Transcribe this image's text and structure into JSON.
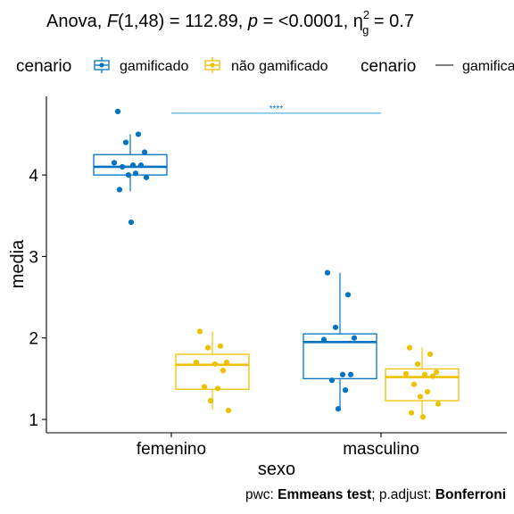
{
  "chart_data": {
    "type": "boxplot",
    "title": {
      "prefix": "Anova, ",
      "stat_symbol": "F",
      "df": "(1,48) = 112.89, ",
      "p_symbol": "p",
      "p_value": " = <0.0001, ",
      "eta_symbol": "η",
      "eta_super": "2",
      "eta_sub": "g",
      "eta_value": " = 0.7"
    },
    "xlabel": "sexo",
    "ylabel": "media",
    "ylim": [
      0.85,
      5.0
    ],
    "yticks": [
      1,
      2,
      3,
      4
    ],
    "categories": [
      "femenino",
      "masculino"
    ],
    "colors": {
      "gamificado": "#0073C2",
      "nao_gamificado": "#EFC000",
      "axis": "#000000",
      "bracket": "#56B4E9"
    },
    "legend": {
      "title1": "cenario",
      "item1": "gamificado",
      "item2": "não gamificado",
      "title2": "cenario",
      "item3": "gamificado"
    },
    "series": [
      {
        "name": "gamificado",
        "boxes": [
          {
            "category": "femenino",
            "whisker_low": 3.8,
            "q1": 4.0,
            "median": 4.1,
            "q3": 4.25,
            "whisker_high": 4.5
          },
          {
            "category": "masculino",
            "whisker_low": 1.12,
            "q1": 1.5,
            "median": 1.95,
            "q3": 2.05,
            "whisker_high": 2.8
          }
        ],
        "points": [
          {
            "category": "femenino",
            "values": [
              4.78,
              4.5,
              4.4,
              4.28,
              4.15,
              4.12,
              4.12,
              4.1,
              4.02,
              4.0,
              3.97,
              3.82,
              3.42
            ]
          },
          {
            "category": "masculino",
            "values": [
              2.8,
              2.53,
              2.13,
              2.0,
              1.98,
              1.55,
              1.55,
              1.48,
              1.36,
              1.13
            ]
          }
        ]
      },
      {
        "name": "não gamificado",
        "boxes": [
          {
            "category": "femenino",
            "whisker_low": 1.12,
            "q1": 1.37,
            "median": 1.67,
            "q3": 1.8,
            "whisker_high": 2.08
          },
          {
            "category": "masculino",
            "whisker_low": 1.02,
            "q1": 1.23,
            "median": 1.52,
            "q3": 1.62,
            "whisker_high": 1.88
          }
        ],
        "points": [
          {
            "category": "femenino",
            "values": [
              2.08,
              1.9,
              1.88,
              1.7,
              1.7,
              1.68,
              1.6,
              1.4,
              1.38,
              1.23,
              1.11
            ]
          },
          {
            "category": "masculino",
            "values": [
              1.88,
              1.8,
              1.68,
              1.58,
              1.56,
              1.55,
              1.53,
              1.43,
              1.34,
              1.28,
              1.19,
              1.08,
              1.03
            ]
          }
        ]
      }
    ],
    "annotation": {
      "label": "****",
      "from": "femenino",
      "to": "masculino",
      "y": 4.78
    },
    "footer": {
      "pwc_label": "pwc: ",
      "pwc_method": "Emmeans test",
      "sep": "; p.adjust: ",
      "adjust_method": "Bonferroni"
    }
  }
}
